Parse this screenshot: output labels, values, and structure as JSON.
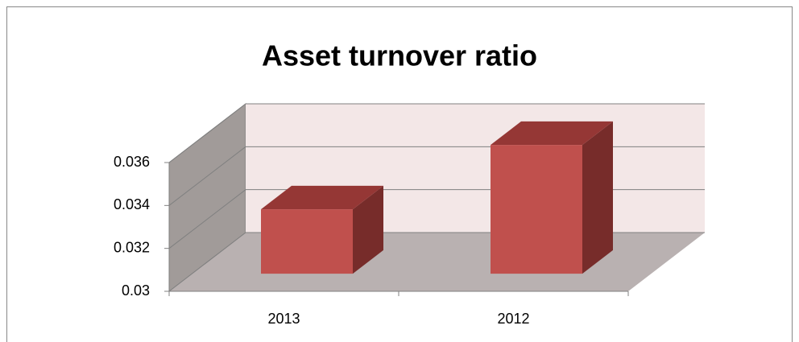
{
  "chart_data": {
    "type": "bar3d",
    "title": "Asset turnover ratio",
    "categories": [
      "2013",
      "2012"
    ],
    "values": [
      0.033,
      0.036
    ],
    "color": "#c0504d",
    "ylim": [
      0.03,
      0.036
    ],
    "yticks": [
      0.03,
      0.032,
      0.034,
      0.036
    ],
    "grid": true
  }
}
